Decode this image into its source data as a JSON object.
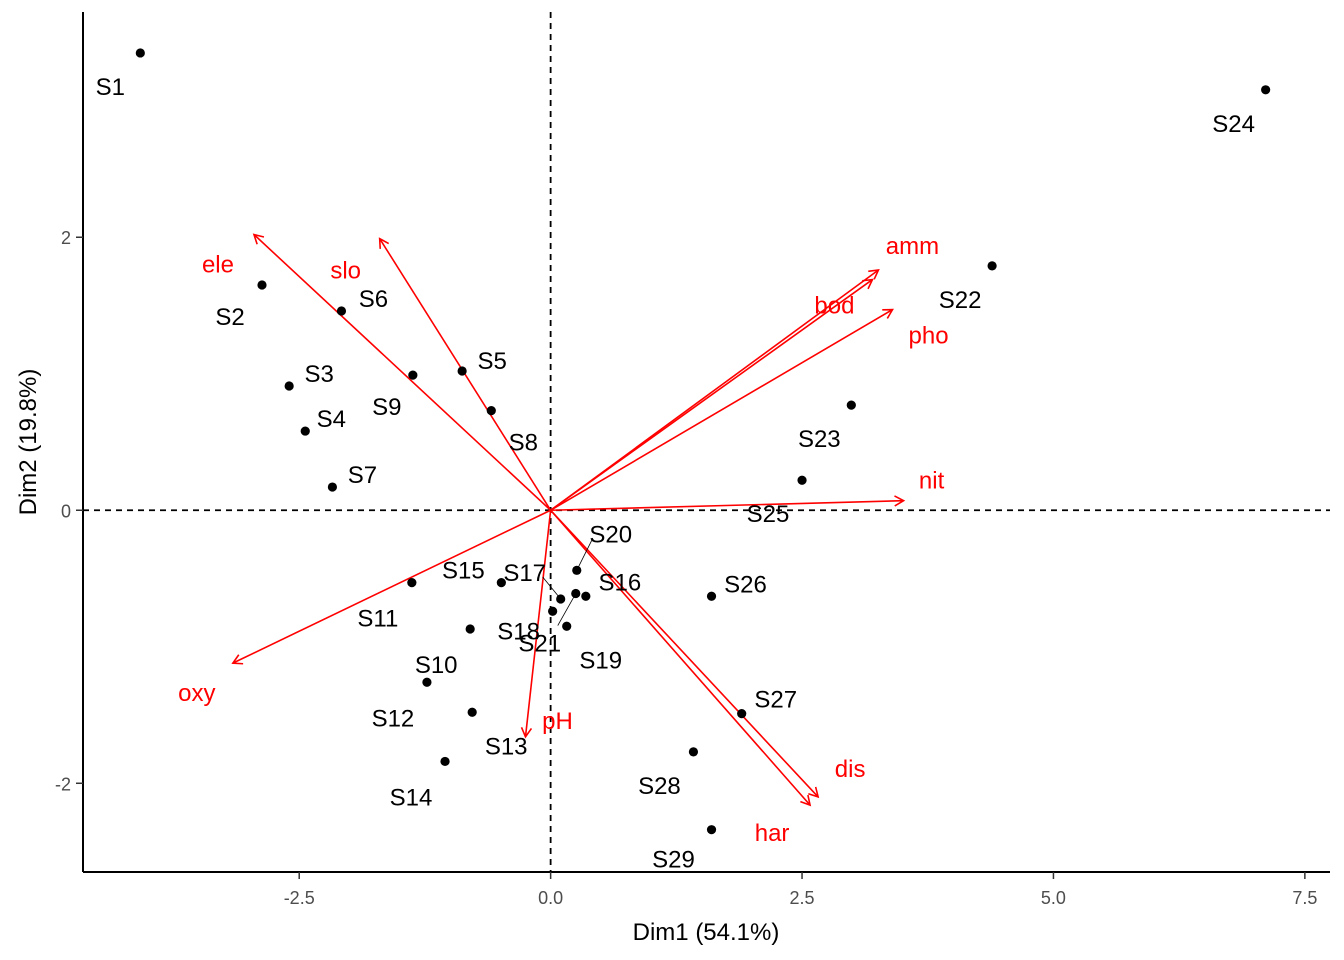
{
  "chart_data": {
    "type": "scatter",
    "subtype": "pca-biplot",
    "xlabel": "Dim1 (54.1%)",
    "ylabel": "Dim2 (19.8%)",
    "xlim": [
      -4.65,
      7.75
    ],
    "ylim": [
      -2.65,
      3.65
    ],
    "x_ticks": [
      -2.5,
      0.0,
      2.5,
      5.0,
      7.5
    ],
    "x_tick_labels": [
      "-2.5",
      "0.0",
      "2.5",
      "5.0",
      "7.5"
    ],
    "y_ticks": [
      -2,
      0,
      2
    ],
    "y_tick_labels": [
      "-2",
      "0",
      "2"
    ],
    "grid": false,
    "reference_lines": "dashed at x=0 and y=0",
    "point_color": "#000000",
    "arrow_color": "#ff0000",
    "points": [
      {
        "label": "S1",
        "x": -4.08,
        "y": 3.35
      },
      {
        "label": "S2",
        "x": -2.87,
        "y": 1.65
      },
      {
        "label": "S3",
        "x": -2.6,
        "y": 0.91
      },
      {
        "label": "S4",
        "x": -2.44,
        "y": 0.58
      },
      {
        "label": "S5",
        "x": -0.88,
        "y": 1.02
      },
      {
        "label": "S6",
        "x": -2.08,
        "y": 1.46
      },
      {
        "label": "S7",
        "x": -2.17,
        "y": 0.17
      },
      {
        "label": "S8",
        "x": -0.59,
        "y": 0.73
      },
      {
        "label": "S9",
        "x": -1.37,
        "y": 0.99
      },
      {
        "label": "S10",
        "x": -0.8,
        "y": -0.87
      },
      {
        "label": "S11",
        "x": -1.38,
        "y": -0.53
      },
      {
        "label": "S12",
        "x": -1.23,
        "y": -1.26
      },
      {
        "label": "S13",
        "x": -0.78,
        "y": -1.48
      },
      {
        "label": "S14",
        "x": -1.05,
        "y": -1.84
      },
      {
        "label": "S15",
        "x": -0.49,
        "y": -0.53
      },
      {
        "label": "S16",
        "x": 0.35,
        "y": -0.63
      },
      {
        "label": "S17",
        "x": 0.1,
        "y": -0.65
      },
      {
        "label": "S18",
        "x": 0.02,
        "y": -0.74
      },
      {
        "label": "S19",
        "x": 0.16,
        "y": -0.85
      },
      {
        "label": "S20",
        "x": 0.26,
        "y": -0.44
      },
      {
        "label": "S21",
        "x": 0.25,
        "y": -0.61
      },
      {
        "label": "S22",
        "x": 4.39,
        "y": 1.79
      },
      {
        "label": "S23",
        "x": 2.99,
        "y": 0.77
      },
      {
        "label": "S24",
        "x": 7.11,
        "y": 3.08
      },
      {
        "label": "S25",
        "x": 2.5,
        "y": 0.22
      },
      {
        "label": "S26",
        "x": 1.6,
        "y": -0.63
      },
      {
        "label": "S27",
        "x": 1.9,
        "y": -1.49
      },
      {
        "label": "S28",
        "x": 1.42,
        "y": -1.77
      },
      {
        "label": "S29",
        "x": 1.6,
        "y": -2.34
      }
    ],
    "variables": [
      {
        "label": "ele",
        "x": -2.95,
        "y": 2.02
      },
      {
        "label": "slo",
        "x": -1.7,
        "y": 1.99
      },
      {
        "label": "amm",
        "x": 3.26,
        "y": 1.76
      },
      {
        "label": "bod",
        "x": 3.2,
        "y": 1.69
      },
      {
        "label": "pho",
        "x": 3.4,
        "y": 1.47
      },
      {
        "label": "nit",
        "x": 3.51,
        "y": 0.07
      },
      {
        "label": "oxy",
        "x": -3.16,
        "y": -1.12
      },
      {
        "label": "pH",
        "x": -0.25,
        "y": -1.66
      },
      {
        "label": "dis",
        "x": 2.66,
        "y": -2.1
      },
      {
        "label": "har",
        "x": 2.58,
        "y": -2.16
      }
    ]
  }
}
